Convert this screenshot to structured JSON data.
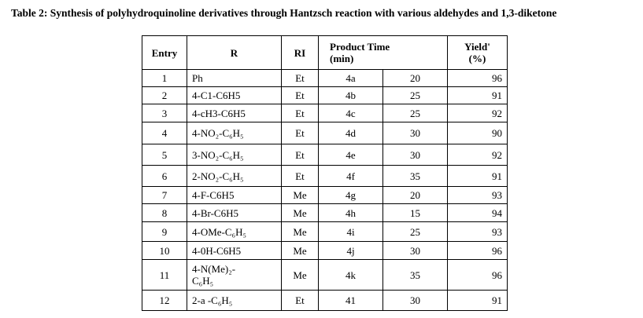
{
  "title": "Table 2: Synthesis of polyhydroquinoline derivatives through Hantzsch reaction with various aldehydes and 1,3-diketone",
  "table": {
    "header": [
      "Entry",
      "R",
      "RI",
      "Product Time\n(min)",
      "Yield'\n(%)"
    ],
    "rows": [
      [
        "1",
        "Ph",
        "Et",
        "4a",
        "20",
        "96"
      ],
      [
        "2",
        "4-C1-C6H5",
        "Et",
        "4b",
        "25",
        "91"
      ],
      [
        "3",
        "4-cH3-C6H5",
        "Et",
        "4c",
        "25",
        "92"
      ],
      [
        "4",
        "4-NO₂-C₆H₅",
        "Et",
        "4d",
        "30",
        "90"
      ],
      [
        "5",
        "3-NO₂-C₆H₅",
        "Et",
        "4e",
        "30",
        "92"
      ],
      [
        "6",
        "2-NO₂-C₆H₅",
        "Et",
        "4f",
        "35",
        "91"
      ],
      [
        "7",
        "4-F-C6H5",
        "Me",
        "4g",
        "20",
        "93"
      ],
      [
        "8",
        "4-Br-C6H5",
        "Me",
        "4h",
        "15",
        "94"
      ],
      [
        "9",
        "4-OMe-C₆H₅",
        "Me",
        "4i",
        "25",
        "93"
      ],
      [
        "10",
        "4-0H-C6H5",
        "Me",
        "4j",
        "30",
        "96"
      ],
      [
        "11",
        "4-N(Me)₂-\nC₆H₅",
        "Me",
        "4k",
        "35",
        "96"
      ],
      [
        "12",
        "2-a -C₆H₅",
        "Et",
        "41",
        "30",
        "91"
      ]
    ]
  }
}
